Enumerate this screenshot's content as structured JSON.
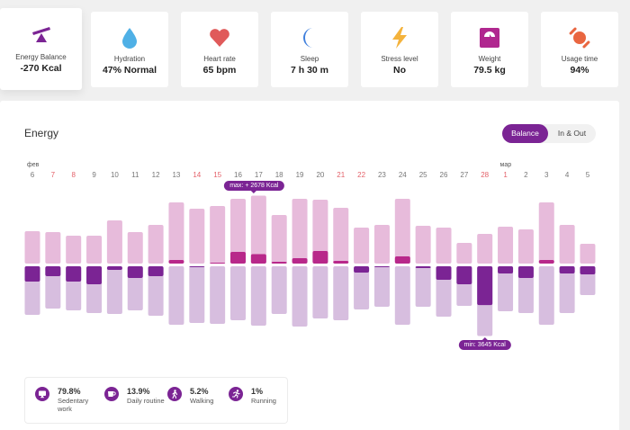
{
  "cards": [
    {
      "id": "energy-balance",
      "icon": "seesaw-icon",
      "label": "Energy Balance",
      "value": "-270 Kcal",
      "color": "#7b2494",
      "active": true
    },
    {
      "id": "hydration",
      "icon": "water-drop-icon",
      "label": "Hydration",
      "value": "47% Normal",
      "color": "#4fb0e6"
    },
    {
      "id": "heart-rate",
      "icon": "heart-icon",
      "label": "Heart rate",
      "value": "65 bpm",
      "color": "#e05a5a"
    },
    {
      "id": "sleep",
      "icon": "moon-icon",
      "label": "Sleep",
      "value": "7 h 30 m",
      "color": "#3f7fdc"
    },
    {
      "id": "stress-level",
      "icon": "lightning-icon",
      "label": "Stress level",
      "value": "No",
      "color": "#f4b33c"
    },
    {
      "id": "weight",
      "icon": "scale-icon",
      "label": "Weight",
      "value": "79.5 kg",
      "color": "#b0278f"
    },
    {
      "id": "usage-time",
      "icon": "band-icon",
      "label": "Usage time",
      "value": "94%",
      "color": "#e96640"
    }
  ],
  "energy": {
    "title": "Energy",
    "toggle": {
      "active": "Balance",
      "inactive": "In & Out"
    },
    "months": [
      {
        "label": "фев",
        "index": 0
      },
      {
        "label": "мар",
        "index": 23
      }
    ],
    "tooltip_max": "max: + 2678 Kcal",
    "tooltip_min": "min: 3645 Kcal"
  },
  "chart_data": {
    "type": "bar",
    "title": "Energy",
    "xlabel": "",
    "ylabel": "Kcal",
    "colors": {
      "in": "#e7bbdb",
      "out": "#d7bedf",
      "surplus": "#b8288a",
      "deficit": "#7b2494"
    },
    "categories": [
      "6",
      "7",
      "8",
      "9",
      "10",
      "11",
      "12",
      "13",
      "14",
      "15",
      "16",
      "17",
      "18",
      "19",
      "20",
      "21",
      "22",
      "23",
      "24",
      "25",
      "26",
      "27",
      "28",
      "1",
      "2",
      "3",
      "4",
      "5"
    ],
    "weekend": [
      false,
      true,
      true,
      false,
      false,
      false,
      false,
      false,
      true,
      true,
      false,
      false,
      false,
      false,
      false,
      true,
      true,
      false,
      false,
      false,
      false,
      false,
      true,
      true,
      false,
      false,
      false,
      false
    ],
    "series": [
      {
        "name": "In",
        "values": [
          1295,
          1260,
          1120,
          1120,
          1715,
          1260,
          1540,
          2415,
          2170,
          2275,
          2555,
          2678,
          1925,
          2555,
          2520,
          2205,
          1435,
          1540,
          2555,
          1505,
          1435,
          840,
          1190,
          1470,
          1365,
          2415,
          1540,
          805
        ]
      },
      {
        "name": "Out",
        "values": [
          1890,
          1645,
          1715,
          1820,
          1855,
          1715,
          1925,
          2275,
          2205,
          2240,
          2100,
          2310,
          1855,
          2345,
          2030,
          2100,
          1680,
          1575,
          2275,
          1575,
          1960,
          1540,
          3645,
          1750,
          1820,
          2275,
          1820,
          1120
        ]
      },
      {
        "name": "Balance",
        "values": [
          -595,
          -385,
          -595,
          -700,
          -140,
          -455,
          -385,
          140,
          -35,
          35,
          455,
          368,
          70,
          210,
          490,
          105,
          -245,
          -35,
          280,
          -70,
          -525,
          -700,
          -2455,
          -280,
          -455,
          140,
          -280,
          -315
        ]
      }
    ],
    "max": {
      "label": "max: + 2678 Kcal",
      "index": 11
    },
    "min": {
      "label": "min: 3645 Kcal",
      "index": 22
    }
  },
  "legend": [
    {
      "icon": "monitor-icon",
      "pct": "79.8%",
      "label": "Sedentary work"
    },
    {
      "icon": "coffee-cup-icon",
      "pct": "13.9%",
      "label": "Daily routine"
    },
    {
      "icon": "walking-icon",
      "pct": "5.2%",
      "label": "Walking"
    },
    {
      "icon": "running-icon",
      "pct": "1%",
      "label": "Running"
    }
  ]
}
